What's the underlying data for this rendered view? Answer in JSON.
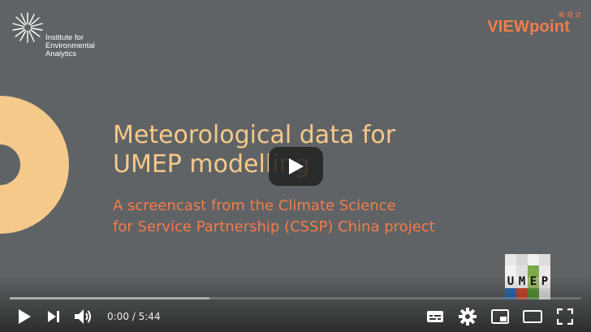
{
  "branding": {
    "iea_lines": [
      "Institute for",
      "Environmental",
      "Analytics"
    ],
    "viewpoint": "VIEWpoint",
    "viewpoint_cn": "新观点",
    "umep_letters": [
      "U",
      "M",
      "E",
      "P"
    ]
  },
  "video": {
    "title_lines": [
      "Meteorological data for",
      "UMEP modelling"
    ],
    "subtitle_lines": [
      "A screencast from the Climate Science",
      "for Service Partnership (CSSP) China project"
    ],
    "current_time": "0:00",
    "time_separator": " / ",
    "duration": "5:44",
    "buffered_fraction": 0.35
  },
  "colors": {
    "background": "#5f6365",
    "accent_yellow": "#f5c98a",
    "accent_orange": "#f47c4b"
  },
  "icons": {
    "play": "play-icon",
    "next": "next-icon",
    "volume": "volume-icon",
    "subtitles": "subtitles-icon",
    "settings": "gear-icon",
    "miniplayer": "miniplayer-icon",
    "theater": "theater-mode-icon",
    "fullscreen": "fullscreen-icon"
  }
}
